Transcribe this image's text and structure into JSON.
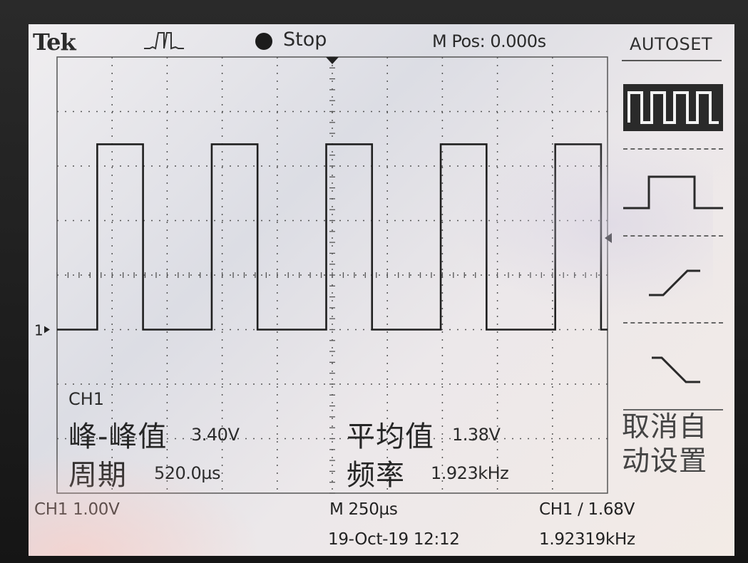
{
  "header": {
    "brand": "Tek",
    "trigger_status_icon": "trigger-waveform-icon",
    "run_status": "Stop",
    "main_position": "M Pos: 0.000s",
    "menu_title": "AUTOSET"
  },
  "autoset_menu": {
    "options": [
      {
        "icon": "multi-cycle-square-icon",
        "selected": true
      },
      {
        "icon": "single-cycle-square-icon",
        "selected": false
      },
      {
        "icon": "rising-edge-icon",
        "selected": false
      },
      {
        "icon": "falling-edge-icon",
        "selected": false
      }
    ],
    "cancel_line1": "取消自",
    "cancel_line2": "动设置"
  },
  "waveform": {
    "channel_marker": "1",
    "levels": {
      "high": 3.4,
      "low": 0.0
    },
    "period_us": 520.0,
    "duty_cycle": 0.4,
    "first_rising_div": 0.73,
    "time_per_div_us": 250,
    "volts_per_div": 1.0,
    "divisions_x": 10,
    "divisions_y": 8
  },
  "measurements": {
    "channel": "CH1",
    "peak_to_peak_label": "峰-峰值",
    "peak_to_peak_value": "3.40V",
    "mean_label": "平均值",
    "mean_value": "1.38V",
    "period_label": "周期",
    "period_value": "520.0µs",
    "frequency_label": "频率",
    "frequency_value": "1.923kHz"
  },
  "status_bar": {
    "ch1_scale": "CH1  1.00V",
    "timebase": "M 250µs",
    "trigger": "CH1 ∕ 1.68V",
    "date_time": "19-Oct-19 12:12",
    "trigger_frequency": "1.92319kHz"
  },
  "colors": {
    "trace": "#1f1f1f",
    "screen_bg": "#e9e7ec",
    "grid": "#555555"
  }
}
